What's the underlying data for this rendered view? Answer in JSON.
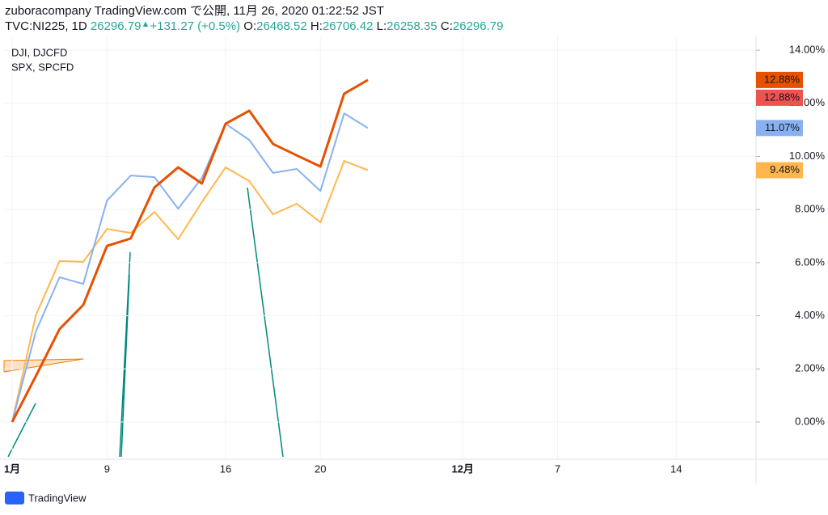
{
  "header": {
    "line1": "zuboracompany TradingView.com で公開, 11月 26, 2020 01:22:52 JST",
    "symbol": "TVC:NI225, 1D",
    "price": "26296.79",
    "arrow": "▲",
    "change": "+131.27 (+0.5%)",
    "ohlc": [
      {
        "label": "O:",
        "value": "26468.52"
      },
      {
        "label": "H:",
        "value": "26706.42"
      },
      {
        "label": "L:",
        "value": "26258.35"
      },
      {
        "label": "C:",
        "value": "26296.79"
      }
    ]
  },
  "chart_data": {
    "type": "line",
    "categories": [
      "1月",
      null,
      null,
      null,
      "9",
      null,
      null,
      null,
      null,
      "16",
      null,
      null,
      null,
      "20",
      null,
      null,
      null,
      null,
      null,
      "12月",
      null,
      null,
      null,
      "7",
      null,
      null,
      null,
      null,
      "14",
      null,
      null,
      null
    ],
    "ylim": [
      -1.4,
      14.52
    ],
    "yticks": [
      {
        "value": 0,
        "label": "0.00%"
      },
      {
        "value": 2,
        "label": "2.00%"
      },
      {
        "value": 4,
        "label": "4.00%"
      },
      {
        "value": 6,
        "label": "6.00%"
      },
      {
        "value": 8,
        "label": "8.00%"
      },
      {
        "value": 10,
        "label": "10.00%"
      },
      {
        "value": 12,
        "label": "12.00%"
      },
      {
        "value": 14,
        "label": "14.00%"
      }
    ],
    "grid": true,
    "series": [
      {
        "color": "#e65100",
        "width": 3,
        "values": [
          0,
          1.73,
          3.5,
          4.41,
          6.63,
          6.91,
          8.83,
          9.59,
          8.98,
          11.23,
          11.72,
          10.47,
          10.04,
          9.62,
          12.36,
          12.88,
          null,
          null,
          null,
          null,
          null,
          null,
          null,
          null,
          null,
          null,
          null,
          null,
          null,
          null,
          null,
          null
        ],
        "value_labels": [
          null,
          null,
          null,
          null,
          null,
          null,
          null,
          null,
          null,
          null,
          null,
          null,
          null,
          null,
          null,
          "12.88%",
          null,
          null,
          null,
          null,
          null,
          null,
          null,
          null,
          null,
          null,
          null,
          null,
          null,
          null,
          null,
          null
        ]
      },
      {
        "name": "DJI, DJCFD",
        "color": "#89b1f0",
        "width": 2,
        "values": [
          0,
          3.41,
          5.45,
          5.2,
          8.34,
          9.28,
          9.22,
          8.03,
          9.19,
          11.23,
          10.62,
          9.38,
          9.53,
          8.7,
          11.62,
          11.07,
          null,
          null,
          null,
          null,
          null,
          null,
          null,
          null,
          null,
          null,
          null,
          null,
          null,
          null,
          null,
          null
        ],
        "value_labels": [
          null,
          null,
          null,
          null,
          null,
          null,
          null,
          null,
          null,
          null,
          null,
          null,
          null,
          null,
          null,
          "11.07%",
          null,
          null,
          null,
          null,
          null,
          null,
          null,
          null,
          null,
          null,
          null,
          null,
          null,
          null,
          null,
          null
        ]
      },
      {
        "name": "SPX, SPCFD",
        "color": "#ffb74d",
        "width": 2,
        "values": [
          0,
          4.02,
          6.06,
          6.03,
          7.27,
          7.12,
          7.91,
          6.88,
          8.28,
          9.59,
          9.07,
          7.82,
          8.22,
          7.52,
          9.83,
          9.48,
          null,
          null,
          null,
          null,
          null,
          null,
          null,
          null,
          null,
          null,
          null,
          null,
          null,
          null,
          null,
          null
        ],
        "value_labels": [
          null,
          null,
          null,
          null,
          null,
          null,
          null,
          null,
          null,
          null,
          null,
          null,
          null,
          null,
          null,
          "9.48%",
          null,
          null,
          null,
          null,
          null,
          null,
          null,
          null,
          null,
          null,
          null,
          null,
          null,
          null,
          null,
          null
        ]
      }
    ],
    "axis_markers": [
      {
        "value": 12.88,
        "label": "12.88%",
        "color": "#ef5350"
      }
    ]
  },
  "footer": {
    "brand": "TradingView"
  }
}
